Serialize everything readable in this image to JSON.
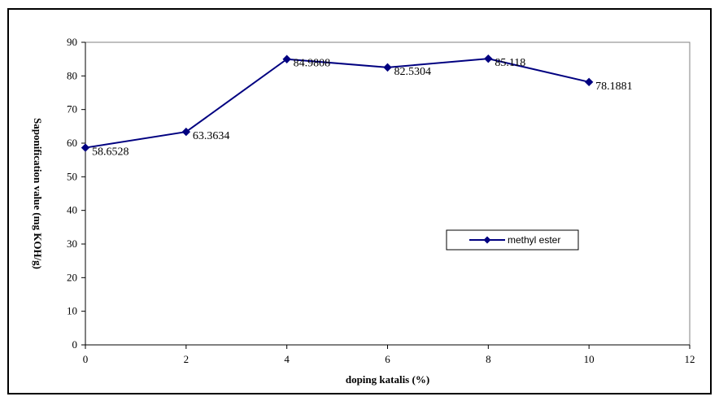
{
  "chart_data": {
    "type": "line",
    "title": "",
    "xlabel": "doping katalis (%)",
    "ylabel": "Saponification value (mg KOH/g)",
    "xlim": [
      0,
      12
    ],
    "ylim": [
      0,
      90
    ],
    "xticks": [
      0,
      2,
      4,
      6,
      8,
      10,
      12
    ],
    "yticks": [
      0,
      10,
      20,
      30,
      40,
      50,
      60,
      70,
      80,
      90
    ],
    "grid": false,
    "legend_position": "right",
    "series": [
      {
        "name": "methyl ester",
        "color": "#000080",
        "marker": "diamond",
        "x": [
          0,
          2,
          4,
          6,
          8,
          10
        ],
        "y": [
          58.6528,
          63.3634,
          84.9808,
          82.5304,
          85.118,
          78.1881
        ],
        "labels": [
          "58.6528",
          "63.3634",
          "84.9808",
          "82.5304",
          "85.118",
          "78.1881"
        ]
      }
    ]
  }
}
